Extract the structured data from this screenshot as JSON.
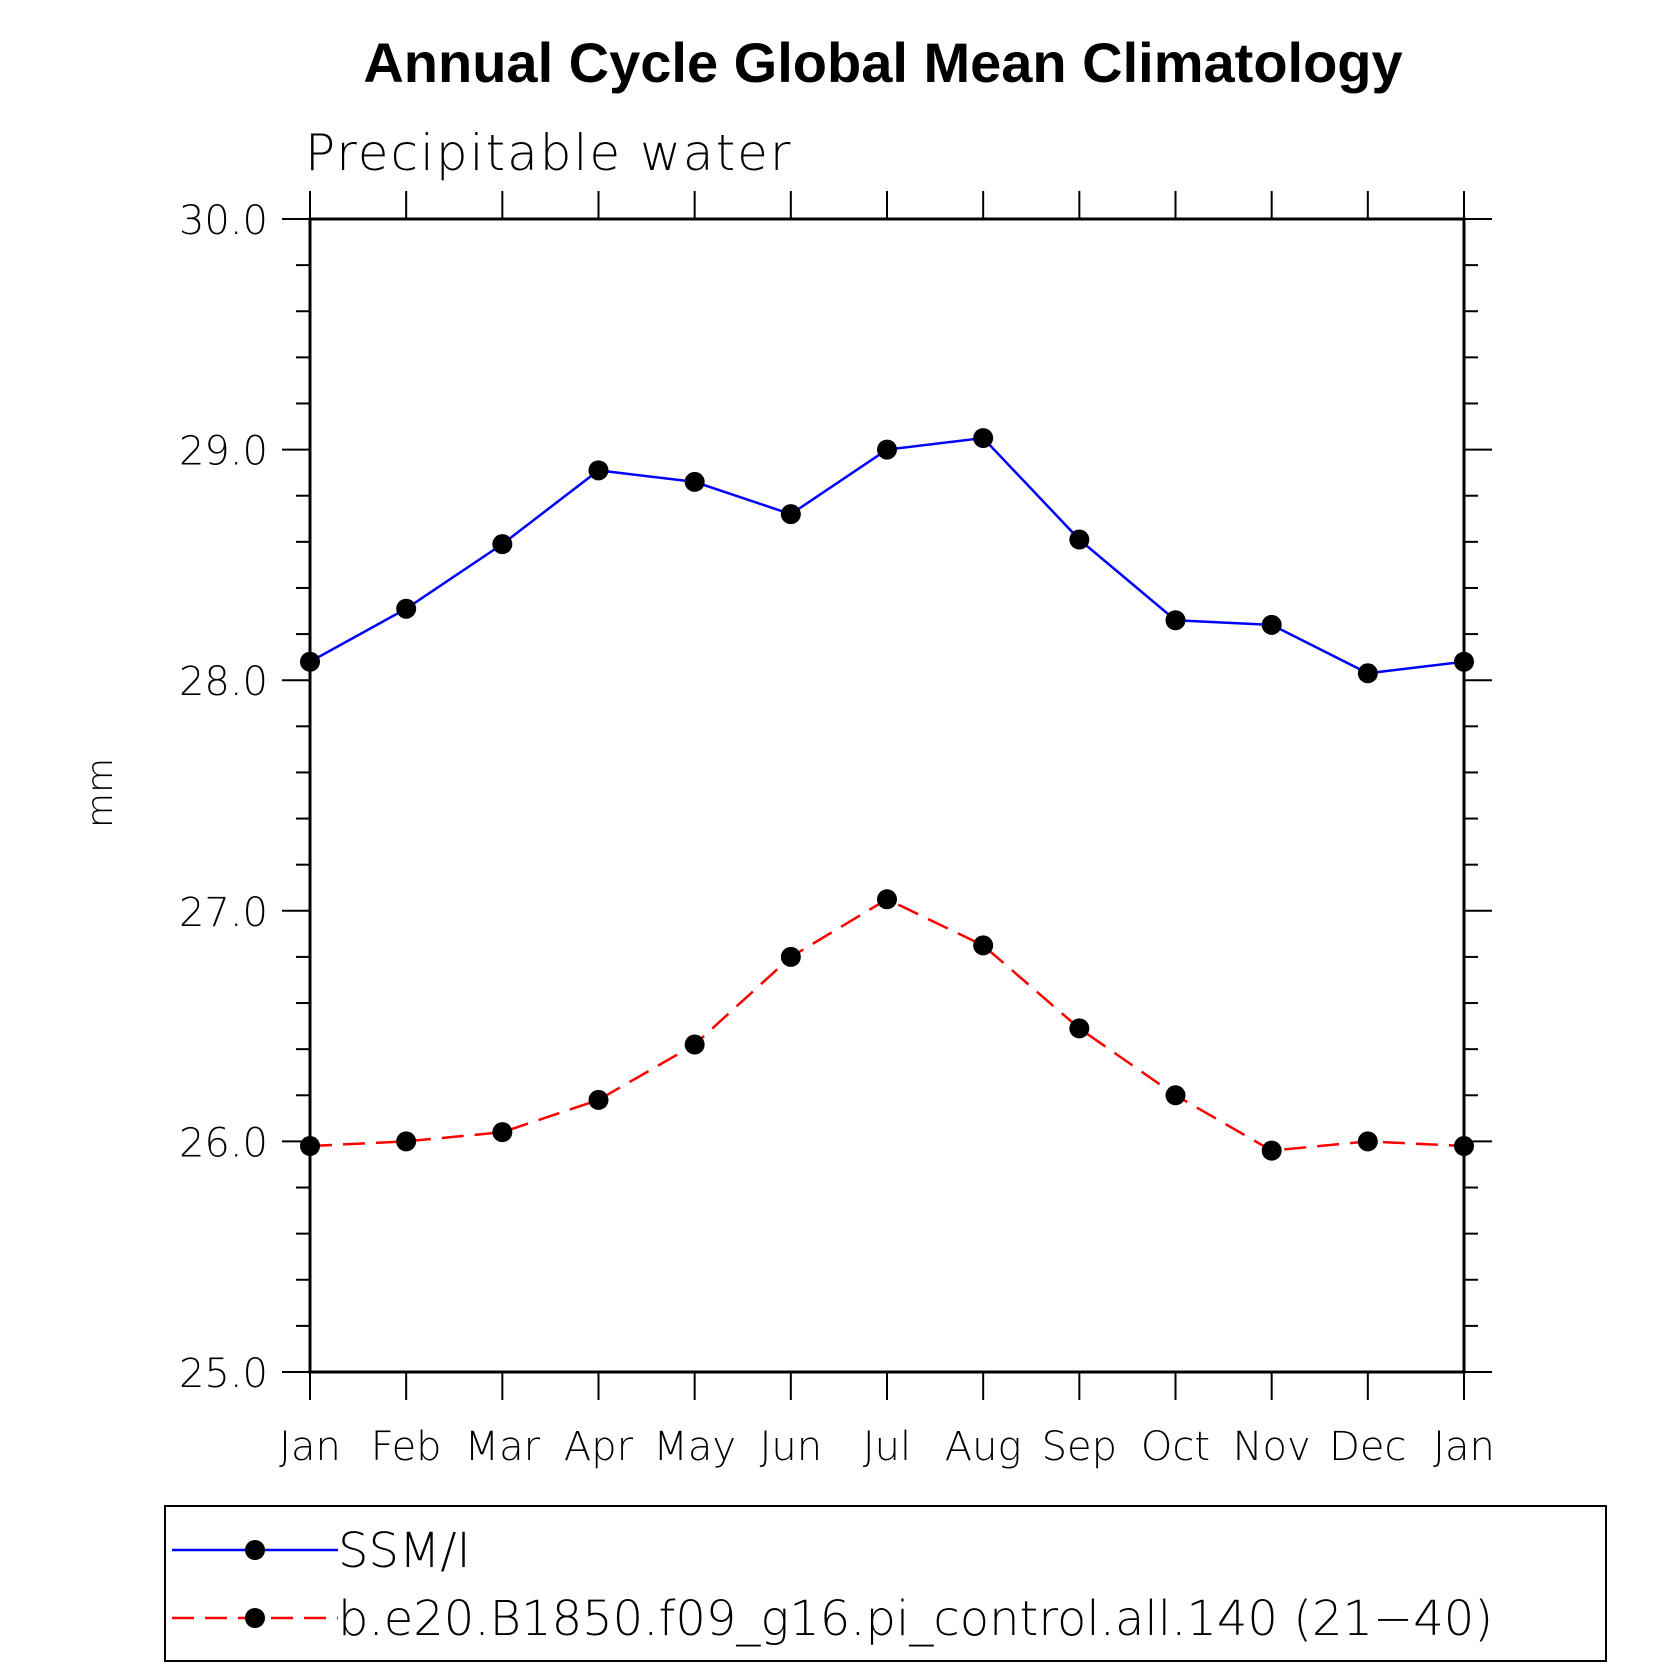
{
  "chart_data": {
    "type": "line",
    "title": "Annual Cycle Global Mean Climatology",
    "subtitle": "Precipitable water",
    "xlabel": "",
    "ylabel": "mm",
    "categories": [
      "Jan",
      "Feb",
      "Mar",
      "Apr",
      "May",
      "Jun",
      "Jul",
      "Aug",
      "Sep",
      "Oct",
      "Nov",
      "Dec",
      "Jan"
    ],
    "ylim": [
      25.0,
      30.0
    ],
    "yticks": [
      "25.0",
      "26.0",
      "27.0",
      "28.0",
      "29.0",
      "30.0"
    ],
    "grid": false,
    "legend_position": "bottom",
    "series": [
      {
        "name": "SSM/I",
        "color": "#0000ff",
        "line_style": "solid",
        "marker": "filled-circle",
        "values": [
          28.08,
          28.31,
          28.59,
          28.91,
          28.86,
          28.72,
          29.0,
          29.05,
          28.61,
          28.26,
          28.24,
          28.03,
          28.08
        ]
      },
      {
        "name": "b.e20.B1850.f09_g16.pi_control.all.140 (21−40)",
        "color": "#ff0000",
        "line_style": "dashed",
        "marker": "filled-circle",
        "values": [
          25.98,
          26.0,
          26.04,
          26.18,
          26.42,
          26.8,
          27.05,
          26.85,
          26.49,
          26.2,
          25.96,
          26.0,
          25.98
        ]
      }
    ]
  }
}
